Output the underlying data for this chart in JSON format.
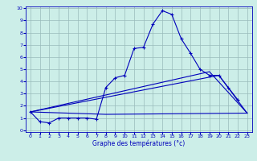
{
  "xlabel": "Graphe des températures (°c)",
  "x_values": [
    0,
    1,
    2,
    3,
    4,
    5,
    6,
    7,
    8,
    9,
    10,
    11,
    12,
    13,
    14,
    15,
    16,
    17,
    18,
    19,
    20,
    21,
    22,
    23
  ],
  "line1_x": [
    0,
    1,
    2,
    3,
    4,
    5,
    6,
    7,
    8,
    9,
    10,
    11,
    12,
    13,
    14,
    15,
    16,
    17,
    18,
    19,
    20,
    21,
    22
  ],
  "line1_y": [
    1.5,
    0.7,
    0.6,
    1.0,
    1.0,
    1.0,
    1.0,
    0.9,
    3.5,
    4.3,
    4.5,
    6.7,
    6.8,
    8.7,
    9.8,
    9.5,
    7.5,
    6.3,
    5.0,
    4.5,
    4.5,
    3.5,
    2.5
  ],
  "line2_x": [
    0,
    20,
    23
  ],
  "line2_y": [
    1.5,
    4.5,
    1.4
  ],
  "line3_x": [
    0,
    19,
    23
  ],
  "line3_y": [
    1.5,
    4.8,
    1.4
  ],
  "line4_x": [
    0,
    8,
    23
  ],
  "line4_y": [
    1.5,
    1.3,
    1.4
  ],
  "bg_color": "#cceee8",
  "line_color": "#0000bb",
  "grid_color": "#99bbbb",
  "ylim": [
    0,
    10
  ],
  "xlim": [
    -0.5,
    23.5
  ],
  "yticks": [
    0,
    1,
    2,
    3,
    4,
    5,
    6,
    7,
    8,
    9,
    10
  ]
}
